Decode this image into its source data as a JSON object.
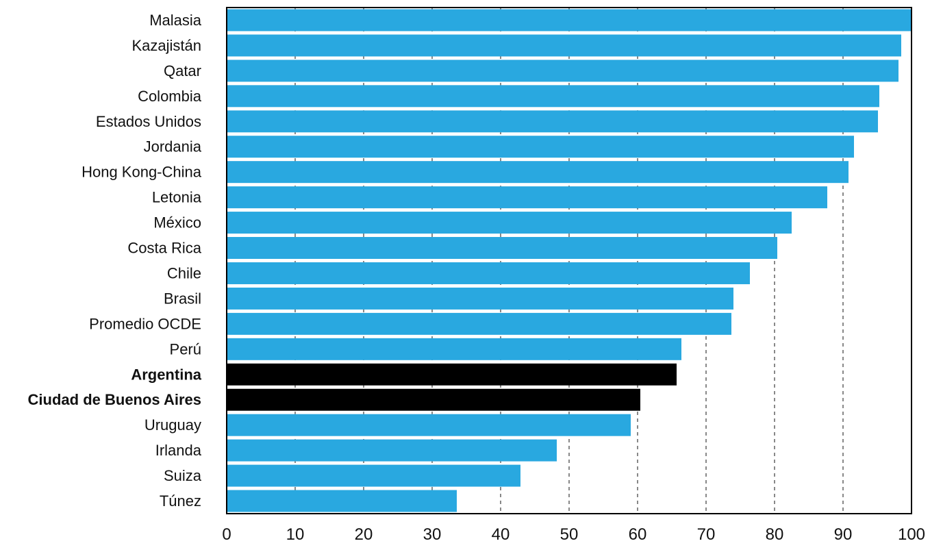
{
  "chart_data": {
    "type": "bar",
    "orientation": "horizontal",
    "title": "",
    "xlabel": "",
    "ylabel": "",
    "xlim": [
      0,
      100
    ],
    "x_ticks": [
      0,
      10,
      20,
      30,
      40,
      50,
      60,
      70,
      80,
      90,
      100
    ],
    "grid": "vertical dashed",
    "categories": [
      "Malasia",
      "Kazajistán",
      "Qatar",
      "Colombia",
      "Estados Unidos",
      "Jordania",
      "Hong Kong-China",
      "Letonia",
      "México",
      "Costa Rica",
      "Chile",
      "Brasil",
      "Promedio OCDE",
      "Perú",
      "Argentina",
      "Ciudad de Buenos Aires",
      "Uruguay",
      "Irlanda",
      "Suiza",
      "Túnez"
    ],
    "values": [
      100,
      98.5,
      98.1,
      95.3,
      95.1,
      91.6,
      90.8,
      87.7,
      82.5,
      80.4,
      76.4,
      74.0,
      73.7,
      66.4,
      65.7,
      60.4,
      59.0,
      48.2,
      42.9,
      33.6
    ],
    "highlighted": [
      "Argentina",
      "Ciudad de Buenos Aires"
    ],
    "colors": {
      "bar": "#29a8e0",
      "highlight": "#000000",
      "grid": "#888888",
      "axis": "#000000"
    }
  }
}
